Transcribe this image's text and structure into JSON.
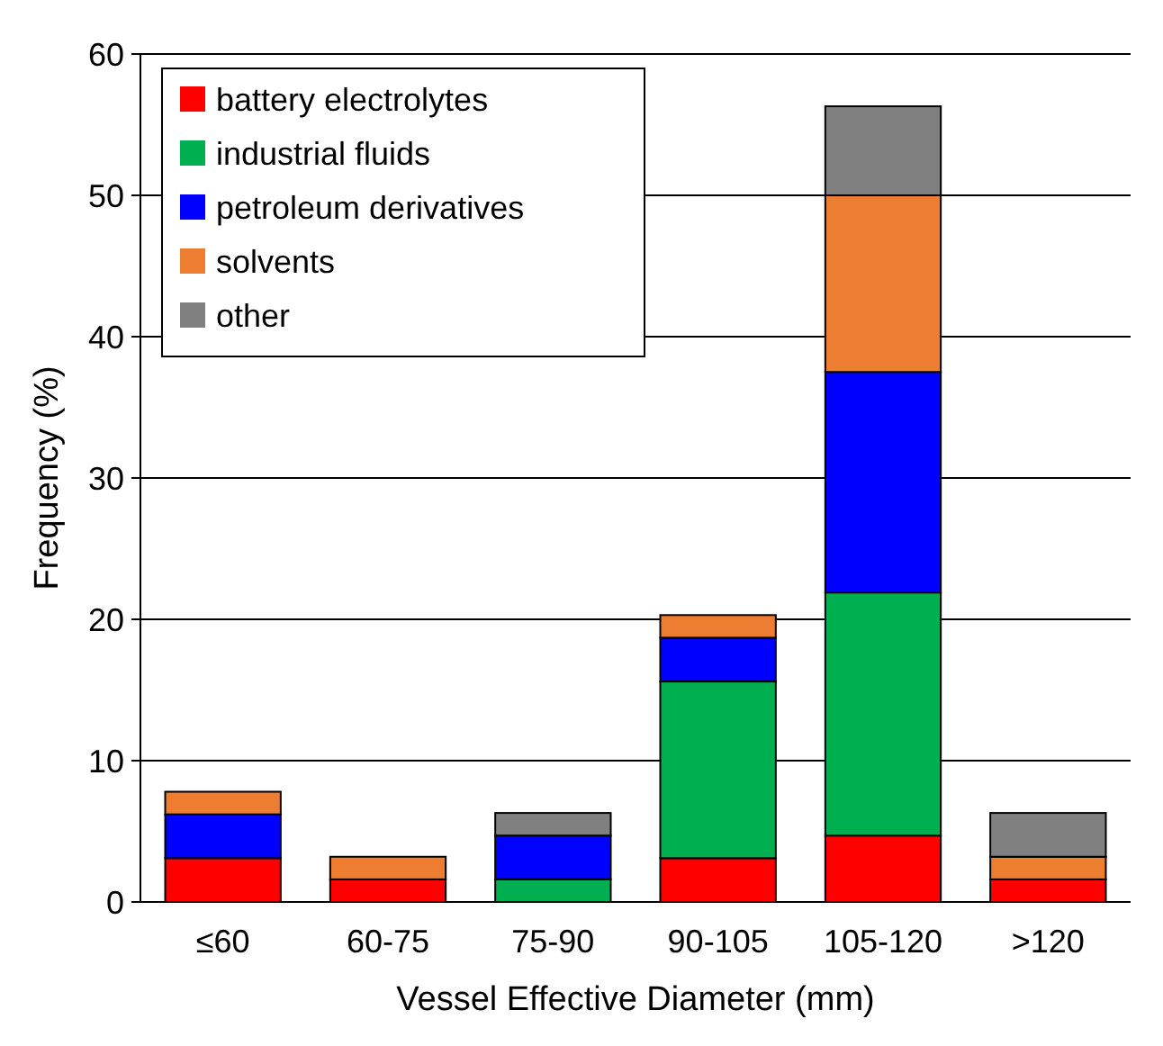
{
  "chart_data": {
    "type": "bar",
    "stacked": true,
    "xlabel": "Vessel Effective Diameter (mm)",
    "ylabel": "Frequency (%)",
    "categories": [
      "≤60",
      "60-75",
      "75-90",
      "90-105",
      "105-120",
      ">120"
    ],
    "series": [
      {
        "name": "battery electrolytes",
        "color": "#ff0000",
        "values": [
          3.1,
          1.6,
          0,
          3.1,
          4.7,
          1.6
        ]
      },
      {
        "name": "industrial fluids",
        "color": "#00b050",
        "values": [
          0,
          0,
          1.6,
          12.5,
          17.2,
          0
        ]
      },
      {
        "name": "petroleum derivatives",
        "color": "#0000ff",
        "values": [
          3.1,
          0,
          3.1,
          3.1,
          15.6,
          0
        ]
      },
      {
        "name": "solvents",
        "color": "#ed7d31",
        "values": [
          1.6,
          1.6,
          0,
          1.6,
          12.5,
          1.6
        ]
      },
      {
        "name": "other",
        "color": "#808080",
        "values": [
          0,
          0,
          1.6,
          0,
          6.3,
          3.1
        ]
      }
    ],
    "ylim": [
      0,
      60
    ],
    "yticks": [
      0,
      10,
      20,
      30,
      40,
      50,
      60
    ],
    "grid": "y",
    "legend": "top left"
  }
}
